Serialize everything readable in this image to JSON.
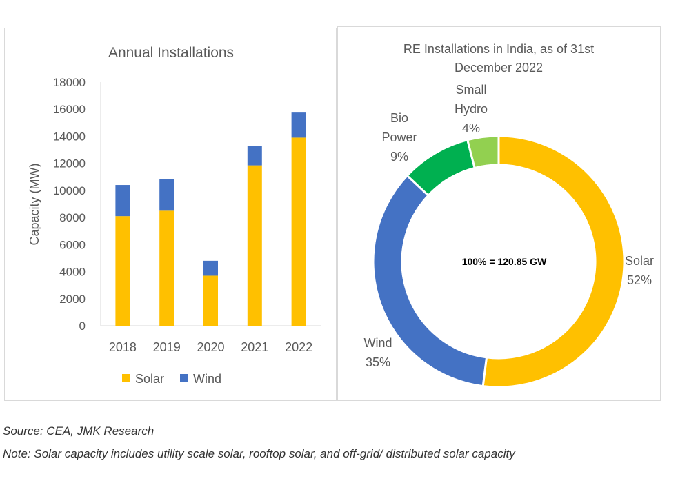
{
  "chart_data": [
    {
      "type": "bar",
      "stacked": true,
      "title": "Annual Installations",
      "xlabel": "",
      "ylabel": "Capacity (MW)",
      "ylim": [
        0,
        18000
      ],
      "yticks": [
        "0",
        "2000",
        "4000",
        "6000",
        "8000",
        "10000",
        "12000",
        "14000",
        "16000",
        "18000"
      ],
      "categories": [
        "2018",
        "2019",
        "2020",
        "2021",
        "2022"
      ],
      "series": [
        {
          "name": "Solar",
          "color": "#FFC000",
          "values": [
            8100,
            8500,
            3700,
            11850,
            13900
          ]
        },
        {
          "name": "Wind",
          "color": "#4472C4",
          "values": [
            2300,
            2350,
            1100,
            1450,
            1850
          ]
        }
      ],
      "legend_position": "bottom",
      "grid": false
    },
    {
      "type": "pie",
      "donut": true,
      "title": "RE Installations in India, as of 31st December 2022",
      "title_lines": [
        "RE Installations in India, as of 31st",
        "December 2022"
      ],
      "center_label": "100% = 120.85 GW",
      "slices": [
        {
          "name": "Solar",
          "value": 52,
          "label_lines": [
            "Solar",
            "52%"
          ],
          "color": "#FFC000"
        },
        {
          "name": "Wind",
          "value": 35,
          "label_lines": [
            "Wind",
            "35%"
          ],
          "color": "#4472C4"
        },
        {
          "name": "Bio Power",
          "value": 9,
          "label_lines": [
            "Bio",
            "Power",
            "9%"
          ],
          "color": "#00B050"
        },
        {
          "name": "Small Hydro",
          "value": 4,
          "label_lines": [
            "Small",
            "Hydro",
            "4%"
          ],
          "color": "#92D050"
        }
      ]
    }
  ],
  "footnotes": {
    "source": "Source: CEA, JMK Research",
    "note": "Note: Solar capacity includes utility scale solar, rooftop solar, and off-grid/ distributed solar capacity"
  }
}
